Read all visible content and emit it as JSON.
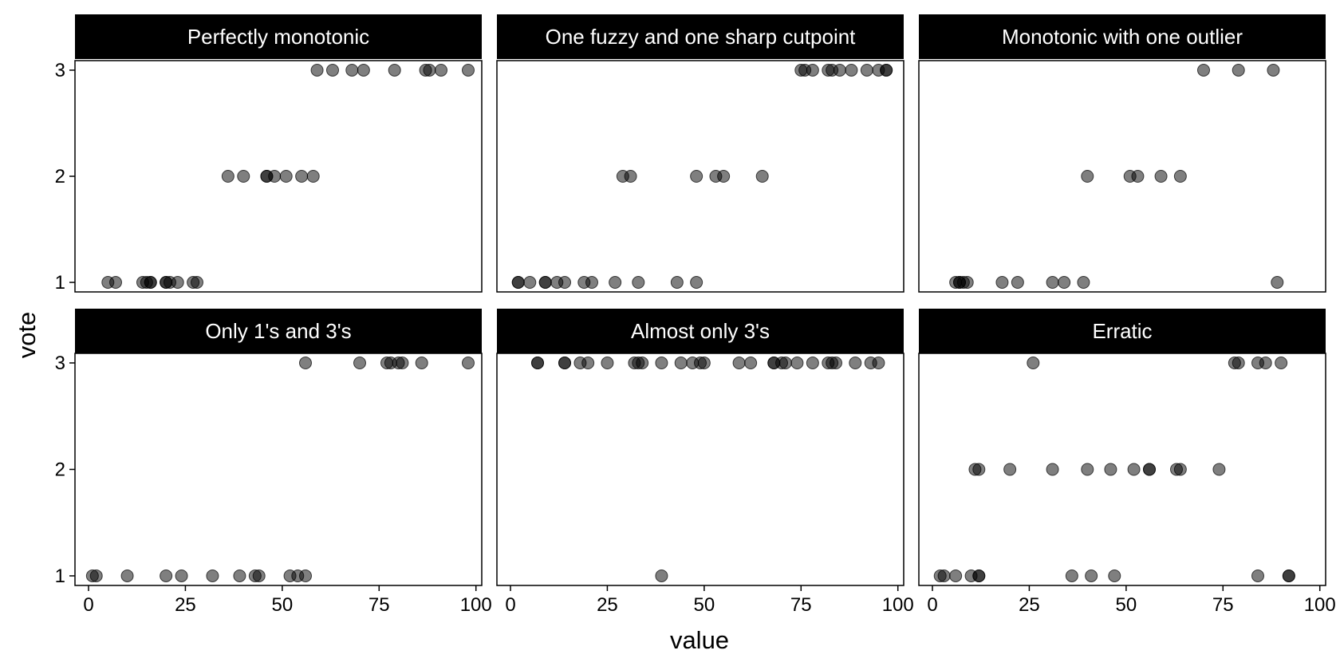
{
  "chart_data": {
    "type": "scatter",
    "xlabel": "value",
    "ylabel": "vote",
    "xlim": [
      -3.5,
      101.5
    ],
    "ylim": [
      0.91,
      3.09
    ],
    "x_ticks": [
      0,
      25,
      50,
      75,
      100
    ],
    "x_tick_labels": [
      "0",
      "25",
      "50",
      "75",
      "100"
    ],
    "y_ticks": [
      1,
      2,
      3
    ],
    "y_tick_labels": [
      "1",
      "2",
      "3"
    ],
    "point_color": "#000000",
    "point_opacity": 0.5,
    "strip_color": "#000000",
    "strip_text_color": "#ffffff",
    "grid": false,
    "panels": [
      {
        "title": "Perfectly monotonic",
        "points": [
          {
            "x": 5,
            "y": 1
          },
          {
            "x": 7,
            "y": 1
          },
          {
            "x": 14,
            "y": 1
          },
          {
            "x": 15,
            "y": 1
          },
          {
            "x": 16,
            "y": 1
          },
          {
            "x": 16,
            "y": 1
          },
          {
            "x": 20,
            "y": 1
          },
          {
            "x": 20,
            "y": 1
          },
          {
            "x": 21,
            "y": 1
          },
          {
            "x": 23,
            "y": 1
          },
          {
            "x": 27,
            "y": 1
          },
          {
            "x": 28,
            "y": 1
          },
          {
            "x": 36,
            "y": 2
          },
          {
            "x": 40,
            "y": 2
          },
          {
            "x": 46,
            "y": 2
          },
          {
            "x": 46,
            "y": 2
          },
          {
            "x": 48,
            "y": 2
          },
          {
            "x": 51,
            "y": 2
          },
          {
            "x": 55,
            "y": 2
          },
          {
            "x": 58,
            "y": 2
          },
          {
            "x": 59,
            "y": 3
          },
          {
            "x": 63,
            "y": 3
          },
          {
            "x": 68,
            "y": 3
          },
          {
            "x": 71,
            "y": 3
          },
          {
            "x": 79,
            "y": 3
          },
          {
            "x": 87,
            "y": 3
          },
          {
            "x": 88,
            "y": 3
          },
          {
            "x": 91,
            "y": 3
          },
          {
            "x": 98,
            "y": 3
          }
        ]
      },
      {
        "title": "One fuzzy and one sharp cutpoint",
        "points": [
          {
            "x": 2,
            "y": 1
          },
          {
            "x": 2,
            "y": 1
          },
          {
            "x": 5,
            "y": 1
          },
          {
            "x": 9,
            "y": 1
          },
          {
            "x": 9,
            "y": 1
          },
          {
            "x": 12,
            "y": 1
          },
          {
            "x": 14,
            "y": 1
          },
          {
            "x": 19,
            "y": 1
          },
          {
            "x": 21,
            "y": 1
          },
          {
            "x": 27,
            "y": 1
          },
          {
            "x": 33,
            "y": 1
          },
          {
            "x": 43,
            "y": 1
          },
          {
            "x": 48,
            "y": 1
          },
          {
            "x": 29,
            "y": 2
          },
          {
            "x": 31,
            "y": 2
          },
          {
            "x": 48,
            "y": 2
          },
          {
            "x": 53,
            "y": 2
          },
          {
            "x": 55,
            "y": 2
          },
          {
            "x": 65,
            "y": 2
          },
          {
            "x": 75,
            "y": 3
          },
          {
            "x": 76,
            "y": 3
          },
          {
            "x": 78,
            "y": 3
          },
          {
            "x": 82,
            "y": 3
          },
          {
            "x": 83,
            "y": 3
          },
          {
            "x": 85,
            "y": 3
          },
          {
            "x": 88,
            "y": 3
          },
          {
            "x": 92,
            "y": 3
          },
          {
            "x": 95,
            "y": 3
          },
          {
            "x": 97,
            "y": 3
          },
          {
            "x": 97,
            "y": 3
          }
        ]
      },
      {
        "title": "Monotonic with one outlier",
        "points": [
          {
            "x": 6,
            "y": 1
          },
          {
            "x": 7,
            "y": 1
          },
          {
            "x": 7,
            "y": 1
          },
          {
            "x": 8,
            "y": 1
          },
          {
            "x": 9,
            "y": 1
          },
          {
            "x": 18,
            "y": 1
          },
          {
            "x": 22,
            "y": 1
          },
          {
            "x": 31,
            "y": 1
          },
          {
            "x": 34,
            "y": 1
          },
          {
            "x": 39,
            "y": 1
          },
          {
            "x": 89,
            "y": 1
          },
          {
            "x": 40,
            "y": 2
          },
          {
            "x": 51,
            "y": 2
          },
          {
            "x": 53,
            "y": 2
          },
          {
            "x": 59,
            "y": 2
          },
          {
            "x": 64,
            "y": 2
          },
          {
            "x": 70,
            "y": 3
          },
          {
            "x": 79,
            "y": 3
          },
          {
            "x": 88,
            "y": 3
          }
        ]
      },
      {
        "title": "Only 1's and 3's",
        "points": [
          {
            "x": 1,
            "y": 1
          },
          {
            "x": 2,
            "y": 1
          },
          {
            "x": 10,
            "y": 1
          },
          {
            "x": 20,
            "y": 1
          },
          {
            "x": 24,
            "y": 1
          },
          {
            "x": 32,
            "y": 1
          },
          {
            "x": 39,
            "y": 1
          },
          {
            "x": 43,
            "y": 1
          },
          {
            "x": 44,
            "y": 1
          },
          {
            "x": 52,
            "y": 1
          },
          {
            "x": 54,
            "y": 1
          },
          {
            "x": 56,
            "y": 1
          },
          {
            "x": 56,
            "y": 3
          },
          {
            "x": 70,
            "y": 3
          },
          {
            "x": 77,
            "y": 3
          },
          {
            "x": 78,
            "y": 3
          },
          {
            "x": 80,
            "y": 3
          },
          {
            "x": 81,
            "y": 3
          },
          {
            "x": 86,
            "y": 3
          },
          {
            "x": 98,
            "y": 3
          }
        ]
      },
      {
        "title": "Almost only 3's",
        "points": [
          {
            "x": 39,
            "y": 1
          },
          {
            "x": 7,
            "y": 3
          },
          {
            "x": 7,
            "y": 3
          },
          {
            "x": 14,
            "y": 3
          },
          {
            "x": 14,
            "y": 3
          },
          {
            "x": 18,
            "y": 3
          },
          {
            "x": 20,
            "y": 3
          },
          {
            "x": 25,
            "y": 3
          },
          {
            "x": 32,
            "y": 3
          },
          {
            "x": 33,
            "y": 3
          },
          {
            "x": 34,
            "y": 3
          },
          {
            "x": 39,
            "y": 3
          },
          {
            "x": 44,
            "y": 3
          },
          {
            "x": 47,
            "y": 3
          },
          {
            "x": 49,
            "y": 3
          },
          {
            "x": 50,
            "y": 3
          },
          {
            "x": 59,
            "y": 3
          },
          {
            "x": 62,
            "y": 3
          },
          {
            "x": 68,
            "y": 3
          },
          {
            "x": 68,
            "y": 3
          },
          {
            "x": 70,
            "y": 3
          },
          {
            "x": 71,
            "y": 3
          },
          {
            "x": 74,
            "y": 3
          },
          {
            "x": 78,
            "y": 3
          },
          {
            "x": 82,
            "y": 3
          },
          {
            "x": 83,
            "y": 3
          },
          {
            "x": 84,
            "y": 3
          },
          {
            "x": 89,
            "y": 3
          },
          {
            "x": 93,
            "y": 3
          },
          {
            "x": 95,
            "y": 3
          }
        ]
      },
      {
        "title": "Erratic",
        "points": [
          {
            "x": 2,
            "y": 1
          },
          {
            "x": 3,
            "y": 1
          },
          {
            "x": 6,
            "y": 1
          },
          {
            "x": 10,
            "y": 1
          },
          {
            "x": 12,
            "y": 1
          },
          {
            "x": 12,
            "y": 1
          },
          {
            "x": 36,
            "y": 1
          },
          {
            "x": 41,
            "y": 1
          },
          {
            "x": 47,
            "y": 1
          },
          {
            "x": 84,
            "y": 1
          },
          {
            "x": 92,
            "y": 1
          },
          {
            "x": 92,
            "y": 1
          },
          {
            "x": 11,
            "y": 2
          },
          {
            "x": 12,
            "y": 2
          },
          {
            "x": 20,
            "y": 2
          },
          {
            "x": 31,
            "y": 2
          },
          {
            "x": 40,
            "y": 2
          },
          {
            "x": 46,
            "y": 2
          },
          {
            "x": 52,
            "y": 2
          },
          {
            "x": 56,
            "y": 2
          },
          {
            "x": 56,
            "y": 2
          },
          {
            "x": 63,
            "y": 2
          },
          {
            "x": 64,
            "y": 2
          },
          {
            "x": 74,
            "y": 2
          },
          {
            "x": 26,
            "y": 3
          },
          {
            "x": 78,
            "y": 3
          },
          {
            "x": 79,
            "y": 3
          },
          {
            "x": 84,
            "y": 3
          },
          {
            "x": 86,
            "y": 3
          },
          {
            "x": 90,
            "y": 3
          }
        ]
      }
    ]
  }
}
